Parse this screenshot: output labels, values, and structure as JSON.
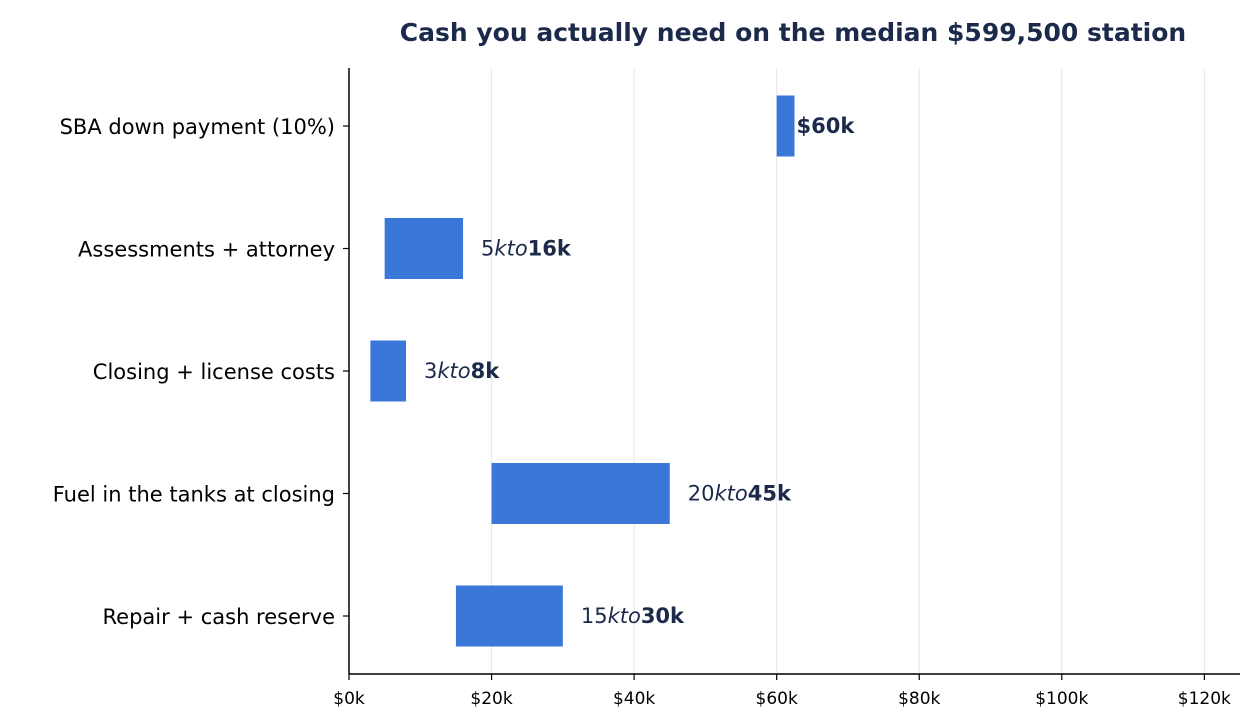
{
  "chart_data": {
    "type": "bar",
    "orientation": "horizontal",
    "title": "Cash you actually need on the median $599,500 station",
    "xlabel": "",
    "ylabel": "",
    "xlim": [
      0,
      125000
    ],
    "x_ticks": [
      {
        "value": 0,
        "label": "$0k"
      },
      {
        "value": 20000,
        "label": "$20k"
      },
      {
        "value": 40000,
        "label": "$40k"
      },
      {
        "value": 60000,
        "label": "$60k"
      },
      {
        "value": 80000,
        "label": "$80k"
      },
      {
        "value": 100000,
        "label": "$100k"
      },
      {
        "value": 120000,
        "label": "$120k"
      }
    ],
    "grid": "vertical",
    "color": "#3b76d9",
    "categories": [
      "SBA down payment (10%)",
      "Assessments + attorney",
      "Closing + license costs",
      "Fuel in the tanks at closing",
      "Repair + cash reserve"
    ],
    "ranges": [
      {
        "low": 60000,
        "high": 62500
      },
      {
        "low": 5000,
        "high": 16000
      },
      {
        "low": 3000,
        "high": 8000
      },
      {
        "low": 20000,
        "high": 45000
      },
      {
        "low": 15000,
        "high": 30000
      }
    ],
    "data_labels": [
      [
        {
          "text": "$60k",
          "style": "bold"
        }
      ],
      [
        {
          "text": "5",
          "style": "normal"
        },
        {
          "text": "kto",
          "style": "italic"
        },
        {
          "text": "16k",
          "style": "bold"
        }
      ],
      [
        {
          "text": "3",
          "style": "normal"
        },
        {
          "text": "kto",
          "style": "italic"
        },
        {
          "text": "8k",
          "style": "bold"
        }
      ],
      [
        {
          "text": "20",
          "style": "normal"
        },
        {
          "text": "kto",
          "style": "italic"
        },
        {
          "text": "45k",
          "style": "bold"
        }
      ],
      [
        {
          "text": "15",
          "style": "normal"
        },
        {
          "text": "kto",
          "style": "italic"
        },
        {
          "text": "30k",
          "style": "bold"
        }
      ]
    ]
  }
}
